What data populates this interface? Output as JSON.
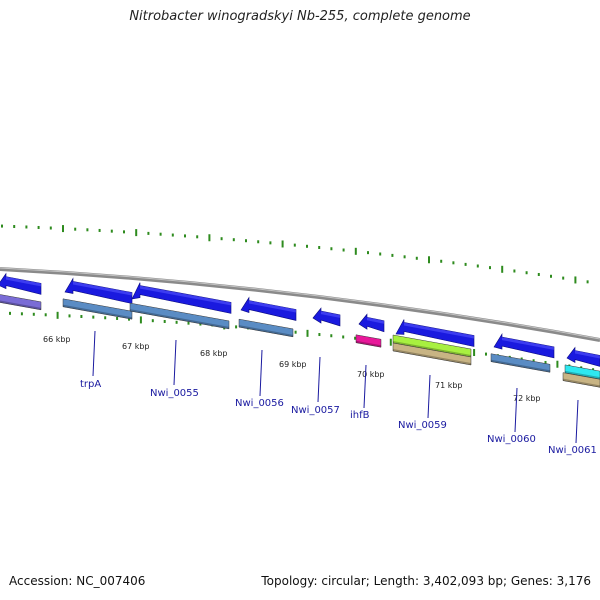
{
  "title": "Nitrobacter winogradskyi Nb-255, complete genome",
  "footer": {
    "accession": "Accession: NC_007406",
    "topology": "Topology: circular; Length: 3,402,093 bp; Genes: 3,176"
  },
  "colors": {
    "backbone": "#8a8a8a",
    "tick": "#2e8b1e",
    "gene_label": "#1a1aa0",
    "kbp_label": "#222222"
  },
  "kbp_labels": [
    "66 kbp",
    "67 kbp",
    "68 kbp",
    "69 kbp",
    "70 kbp",
    "71 kbp",
    "72 kbp"
  ],
  "genes": [
    {
      "label": "",
      "cds": "#1a1adf",
      "feature": "#7a6cd6"
    },
    {
      "label": "trpA",
      "cds": "#1a1adf",
      "feature": "#5a8cc4"
    },
    {
      "label": "Nwi_0055",
      "cds": "#1a1adf",
      "feature": "#5a8cc4"
    },
    {
      "label": "Nwi_0056",
      "cds": "#1a1adf",
      "feature": "#5a8cc4"
    },
    {
      "label": "Nwi_0057",
      "cds": "#1a1adf",
      "feature": ""
    },
    {
      "label": "ihfB",
      "cds": "#1a1adf",
      "feature": "#e8189a"
    },
    {
      "label": "Nwi_0059",
      "cds": "#1a1adf",
      "feature": "#a8f040",
      "feature2": "#c8b484"
    },
    {
      "label": "Nwi_0060",
      "cds": "#1a1adf",
      "feature": "#5a8cc4"
    },
    {
      "label": "Nwi_0061",
      "cds": "#1a1adf",
      "feature": "#2ee8f0",
      "feature2": "#c8b484"
    }
  ]
}
